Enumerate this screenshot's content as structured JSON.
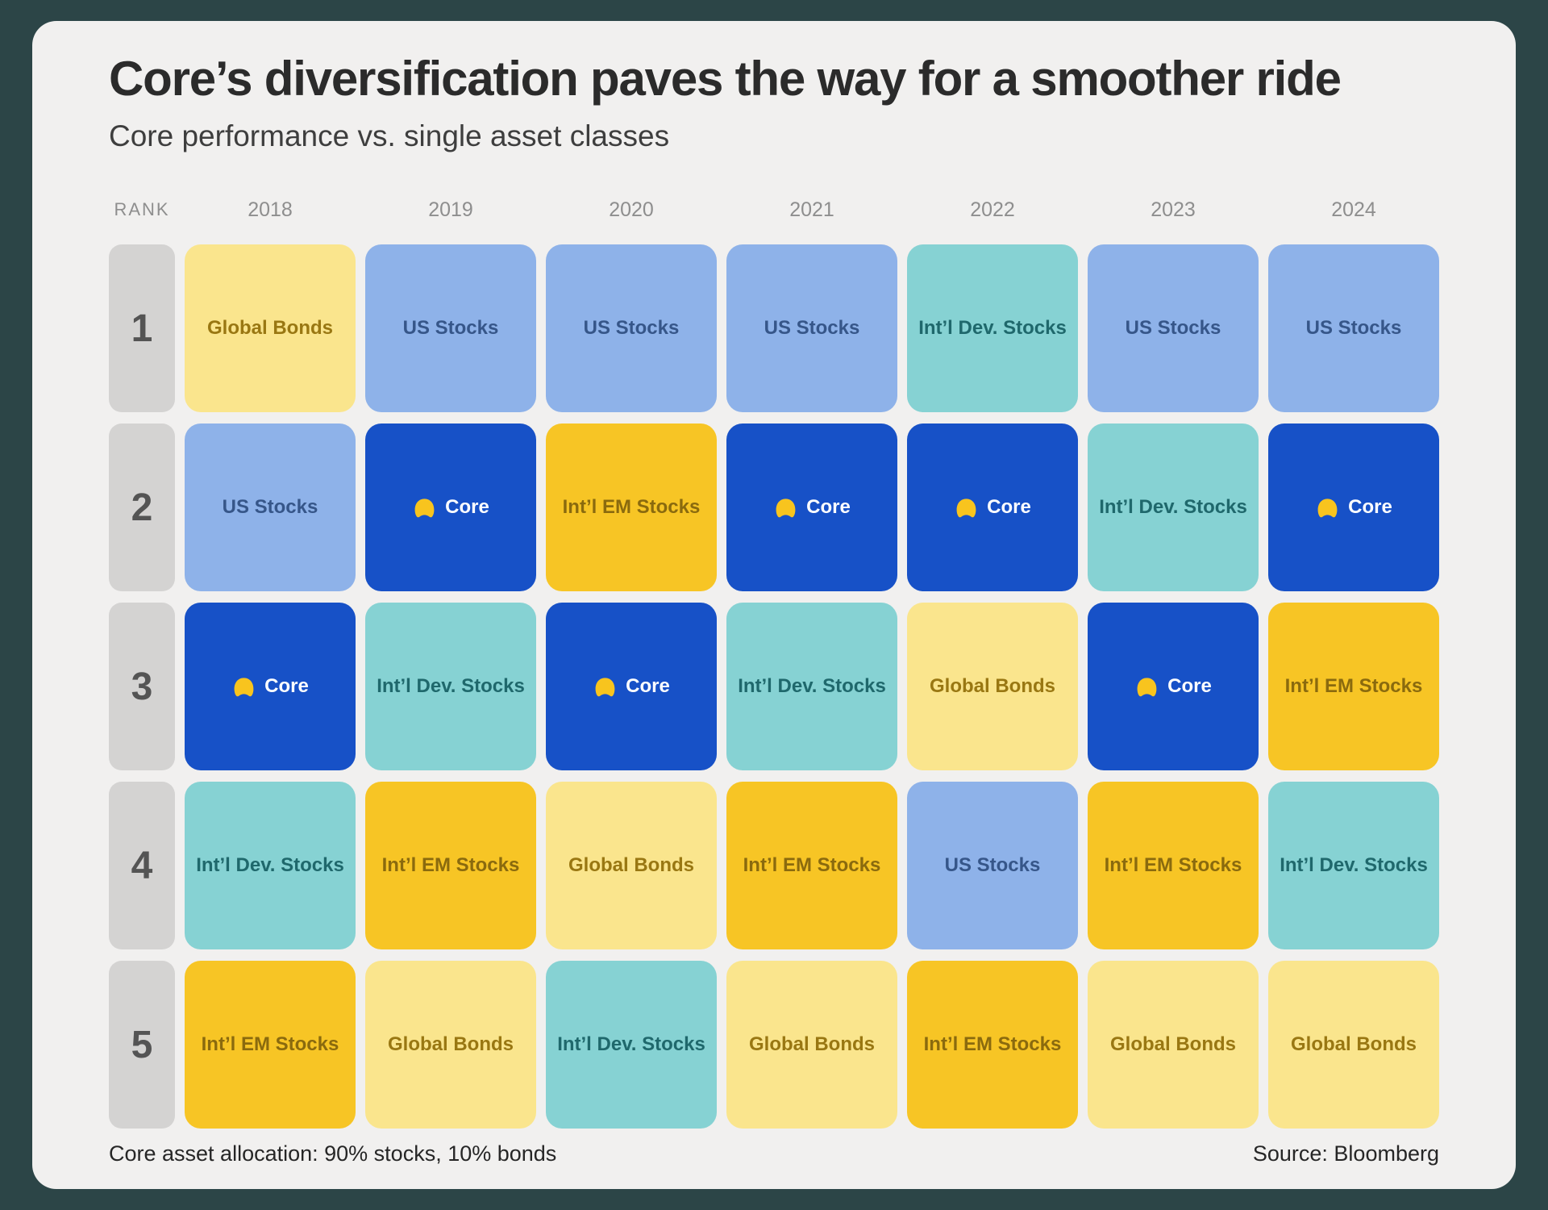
{
  "title": "Core’s diversification paves the way for a smoother ride",
  "subtitle": "Core performance vs. single asset classes",
  "rank_header": "RANK",
  "years": [
    "2018",
    "2019",
    "2020",
    "2021",
    "2022",
    "2023",
    "2024"
  ],
  "ranks": [
    "1",
    "2",
    "3",
    "4",
    "5"
  ],
  "palette": {
    "outer_background": "#2C4547",
    "card_background": "#F1F0EF",
    "title_text": "#2B2B2B",
    "subtitle_text": "#3E3E3E",
    "header_text": "#8E8E8E",
    "rank_cell_background": "#D4D3D2",
    "rank_cell_text": "#545454",
    "footer_text": "#262626"
  },
  "asset_classes": {
    "global_bonds": {
      "label": "Global Bonds",
      "bg": "#FAE58D",
      "fg": "#997712"
    },
    "us_stocks": {
      "label": "US Stocks",
      "bg": "#8EB2E9",
      "fg": "#365689"
    },
    "core": {
      "label": "Core",
      "bg": "#1751C7",
      "fg": "#FFFFFF",
      "icon": "betterment-core-icon",
      "icon_color": "#F8C41E"
    },
    "intl_dev": {
      "label": "Int’l Dev. Stocks",
      "bg": "#86D2D3",
      "fg": "#1F686C"
    },
    "intl_em": {
      "label": "Int’l EM Stocks",
      "bg": "#F7C525",
      "fg": "#8A6A0E"
    }
  },
  "grid_rows": [
    [
      "global_bonds",
      "us_stocks",
      "us_stocks",
      "us_stocks",
      "intl_dev",
      "us_stocks",
      "us_stocks"
    ],
    [
      "us_stocks",
      "core",
      "intl_em",
      "core",
      "core",
      "intl_dev",
      "core"
    ],
    [
      "core",
      "intl_dev",
      "core",
      "intl_dev",
      "global_bonds",
      "core",
      "intl_em"
    ],
    [
      "intl_dev",
      "intl_em",
      "global_bonds",
      "intl_em",
      "us_stocks",
      "intl_em",
      "intl_dev"
    ],
    [
      "intl_em",
      "global_bonds",
      "intl_dev",
      "global_bonds",
      "intl_em",
      "global_bonds",
      "global_bonds"
    ]
  ],
  "footer": {
    "note": "Core asset allocation: 90% stocks, 10% bonds",
    "source": "Source: Bloomberg"
  },
  "chart_data": {
    "type": "table",
    "title": "Core’s diversification paves the way for a smoother ride",
    "subtitle": "Core performance vs. single asset classes",
    "columns": [
      "RANK",
      "2018",
      "2019",
      "2020",
      "2021",
      "2022",
      "2023",
      "2024"
    ],
    "rows": [
      [
        "1",
        "Global Bonds",
        "US Stocks",
        "US Stocks",
        "US Stocks",
        "Int’l Dev. Stocks",
        "US Stocks",
        "US Stocks"
      ],
      [
        "2",
        "US Stocks",
        "Core",
        "Int’l EM Stocks",
        "Core",
        "Core",
        "Int’l Dev. Stocks",
        "Core"
      ],
      [
        "3",
        "Core",
        "Int’l Dev. Stocks",
        "Core",
        "Int’l Dev. Stocks",
        "Global Bonds",
        "Core",
        "Int’l EM Stocks"
      ],
      [
        "4",
        "Int’l Dev. Stocks",
        "Int’l EM Stocks",
        "Global Bonds",
        "Int’l EM Stocks",
        "US Stocks",
        "Int’l EM Stocks",
        "Int’l Dev. Stocks"
      ],
      [
        "5",
        "Int’l EM Stocks",
        "Global Bonds",
        "Int’l Dev. Stocks",
        "Global Bonds",
        "Int’l EM Stocks",
        "Global Bonds",
        "Global Bonds"
      ]
    ],
    "note": "Core asset allocation: 90% stocks, 10% bonds",
    "source": "Source: Bloomberg"
  }
}
